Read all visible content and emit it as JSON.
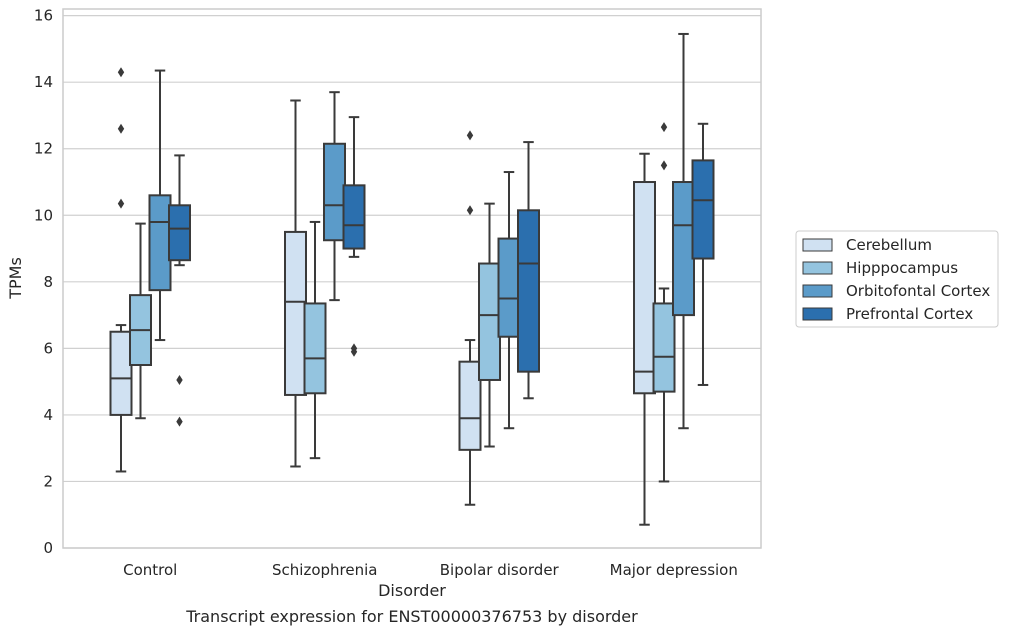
{
  "chart_data": {
    "type": "box",
    "title": "",
    "caption": "Transcript expression for ENST00000376753 by disorder",
    "xlabel": "Disorder",
    "ylabel": "TPMs",
    "ylim": [
      0,
      16.2
    ],
    "yticks": [
      0,
      2,
      4,
      6,
      8,
      10,
      12,
      14,
      16
    ],
    "grid": "horizontal",
    "legend_position": "right",
    "categories": [
      "Control",
      "Schizophrenia",
      "Bipolar disorder",
      "Major depression"
    ],
    "series": [
      {
        "name": "Cerebellum",
        "color": "#d0e1f2",
        "boxes": [
          {
            "whislo": 2.3,
            "q1": 4.0,
            "med": 5.1,
            "q3": 6.5,
            "whishi": 6.7,
            "fliers": [
              10.35,
              12.6,
              14.3
            ]
          },
          {
            "whislo": 2.45,
            "q1": 4.6,
            "med": 7.4,
            "q3": 9.5,
            "whishi": 13.45,
            "fliers": []
          },
          {
            "whislo": 1.3,
            "q1": 2.95,
            "med": 3.9,
            "q3": 5.6,
            "whishi": 6.25,
            "fliers": [
              10.15,
              12.4
            ]
          },
          {
            "whislo": 0.7,
            "q1": 4.65,
            "med": 5.3,
            "q3": 11.0,
            "whishi": 11.85,
            "fliers": []
          }
        ]
      },
      {
        "name": "Hipppocampus",
        "color": "#94c4df",
        "boxes": [
          {
            "whislo": 3.9,
            "q1": 5.5,
            "med": 6.55,
            "q3": 7.6,
            "whishi": 9.75,
            "fliers": []
          },
          {
            "whislo": 2.7,
            "q1": 4.65,
            "med": 5.7,
            "q3": 7.35,
            "whishi": 9.8,
            "fliers": []
          },
          {
            "whislo": 3.05,
            "q1": 5.05,
            "med": 7.0,
            "q3": 8.55,
            "whishi": 10.35,
            "fliers": []
          },
          {
            "whislo": 2.0,
            "q1": 4.7,
            "med": 5.75,
            "q3": 7.35,
            "whishi": 7.8,
            "fliers": [
              11.5,
              12.65
            ]
          }
        ]
      },
      {
        "name": "Orbitofontal Cortex",
        "color": "#5b9bc9",
        "boxes": [
          {
            "whislo": 6.25,
            "q1": 7.75,
            "med": 9.8,
            "q3": 10.6,
            "whishi": 14.35,
            "fliers": []
          },
          {
            "whislo": 7.45,
            "q1": 9.25,
            "med": 10.3,
            "q3": 12.15,
            "whishi": 13.7,
            "fliers": []
          },
          {
            "whislo": 3.6,
            "q1": 6.35,
            "med": 7.5,
            "q3": 9.3,
            "whishi": 11.3,
            "fliers": []
          },
          {
            "whislo": 3.6,
            "q1": 7.0,
            "med": 9.7,
            "q3": 11.0,
            "whishi": 15.45,
            "fliers": []
          }
        ]
      },
      {
        "name": "Prefrontal Cortex",
        "color": "#2b6fae",
        "boxes": [
          {
            "whislo": 8.5,
            "q1": 8.65,
            "med": 9.6,
            "q3": 10.3,
            "whishi": 11.8,
            "fliers": [
              3.8,
              5.05
            ]
          },
          {
            "whislo": 8.75,
            "q1": 9.0,
            "med": 9.7,
            "q3": 10.9,
            "whishi": 12.95,
            "fliers": [
              5.9,
              6.0
            ]
          },
          {
            "whislo": 4.5,
            "q1": 5.3,
            "med": 8.55,
            "q3": 10.15,
            "whishi": 12.2,
            "fliers": []
          },
          {
            "whislo": 4.9,
            "q1": 8.7,
            "med": 10.45,
            "q3": 11.65,
            "whishi": 12.75,
            "fliers": []
          }
        ]
      }
    ]
  }
}
